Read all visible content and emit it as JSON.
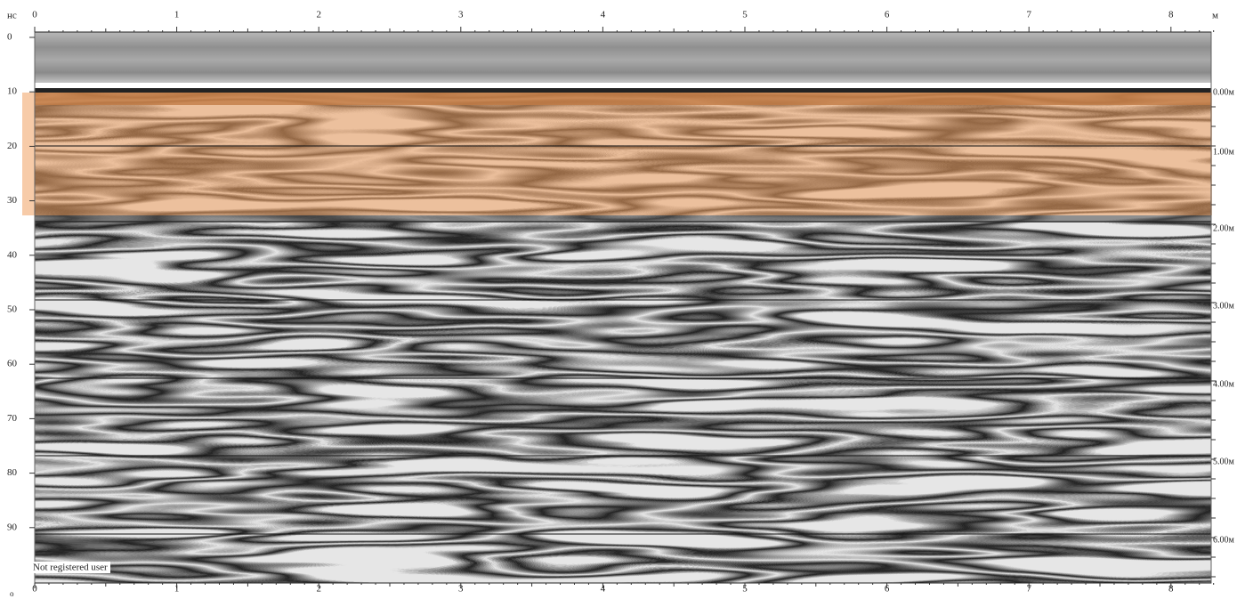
{
  "top_axis": {
    "unit_left": "нс",
    "unit_right": "м",
    "labels": [
      "0",
      "1",
      "2",
      "3",
      "4",
      "5",
      "6",
      "7",
      "8"
    ]
  },
  "left_axis": {
    "labels": [
      "0",
      "10",
      "20",
      "30",
      "40",
      "50",
      "60",
      "70",
      "80",
      "90"
    ]
  },
  "right_axis": {
    "labels": [
      "0.00м",
      "1.00м",
      "2.00м",
      "3.00м",
      "4.00м",
      "5.00м",
      "6.00м"
    ]
  },
  "bottom_axis": {
    "unit_left": "о",
    "labels": [
      "0",
      "1",
      "2",
      "3",
      "4",
      "5",
      "6",
      "7",
      "8"
    ]
  },
  "watermark": "Not registered user"
}
